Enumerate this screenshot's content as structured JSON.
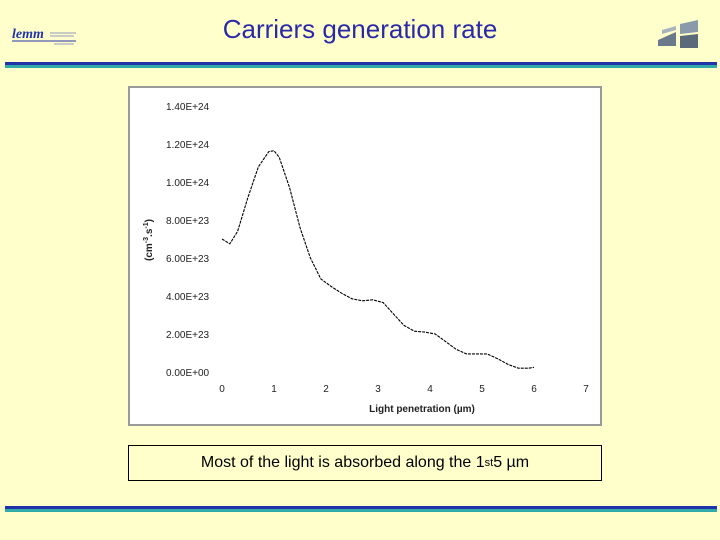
{
  "slide": {
    "title": "Carriers generation rate",
    "caption_pre": "Most of the light is absorbed along the 1",
    "caption_sup": "st",
    "caption_post": " 5 µm",
    "colors": {
      "title": "#2a2aa8",
      "background": "#ffffcc",
      "rule_dark": "#2233aa",
      "rule_light": "#33aaaa"
    }
  },
  "chart_data": {
    "type": "line",
    "title": "",
    "xlabel": "Light penetration (µm)",
    "ylabel_base": "(cm",
    "ylabel_sup1": "-3",
    "ylabel_mid": ".s",
    "ylabel_sup2": "-1",
    "ylabel_end": ")",
    "xlim": [
      0,
      7
    ],
    "ylim": [
      0,
      1.4e+24
    ],
    "x_ticks": [
      "0",
      "1",
      "2",
      "3",
      "4",
      "5",
      "6",
      "7"
    ],
    "y_ticks": [
      "0.00E+00",
      "2.00E+23",
      "4.00E+23",
      "6.00E+23",
      "8.00E+23",
      "1.00E+24",
      "1.20E+24",
      "1.40E+24"
    ],
    "grid": false,
    "series": [
      {
        "color": "#000000",
        "x": [
          0,
          0.15,
          0.3,
          0.5,
          0.7,
          0.9,
          1.0,
          1.1,
          1.3,
          1.5,
          1.7,
          1.9,
          2.1,
          2.3,
          2.5,
          2.7,
          2.9,
          3.1,
          3.3,
          3.5,
          3.7,
          3.9,
          4.1,
          4.3,
          4.5,
          4.7,
          4.9,
          5.1,
          5.3,
          5.5,
          5.7,
          5.9,
          6.0
        ],
        "y": [
          7e+23,
          6.75e+23,
          7.4e+23,
          9.2e+23,
          1.08e+24,
          1.16e+24,
          1.165e+24,
          1.13e+24,
          9.7e+23,
          7.6e+23,
          6e+23,
          4.9e+23,
          4.5e+23,
          4.15e+23,
          3.85e+23,
          3.75e+23,
          3.8e+23,
          3.65e+23,
          3.05e+23,
          2.45e+23,
          2.15e+23,
          2.1e+23,
          2e+23,
          1.6e+23,
          1.2e+23,
          9.5e+22,
          9.5e+22,
          9.5e+22,
          7e+22,
          4e+22,
          2e+22,
          2e+22,
          2.5e+22
        ]
      }
    ]
  }
}
